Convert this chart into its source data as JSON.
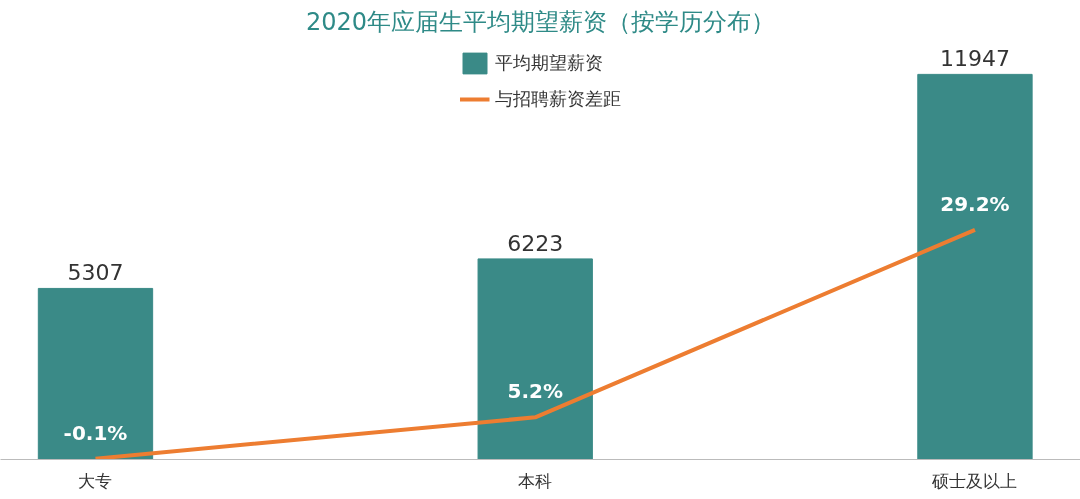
{
  "chart_data": {
    "type": "bar",
    "title": "2020年应届生平均期望薪资（按学历分布）",
    "categories": [
      "大专",
      "本科",
      "硕士及以上"
    ],
    "series": [
      {
        "name": "平均期望薪资",
        "color": "#3a8a87",
        "values": [
          5307,
          6223,
          11947
        ],
        "value_labels": [
          "5307",
          "6223",
          "11947"
        ]
      },
      {
        "name": "与招聘薪资差距",
        "type": "line",
        "axis": "y2",
        "color": "#ed7d31",
        "values": [
          -0.1,
          5.2,
          29.2
        ],
        "value_labels": [
          "-0.1%",
          "5.2%",
          "29.2%"
        ]
      }
    ],
    "tick_labels": "x",
    "grid": false,
    "legend": "top",
    "marker": "none"
  }
}
